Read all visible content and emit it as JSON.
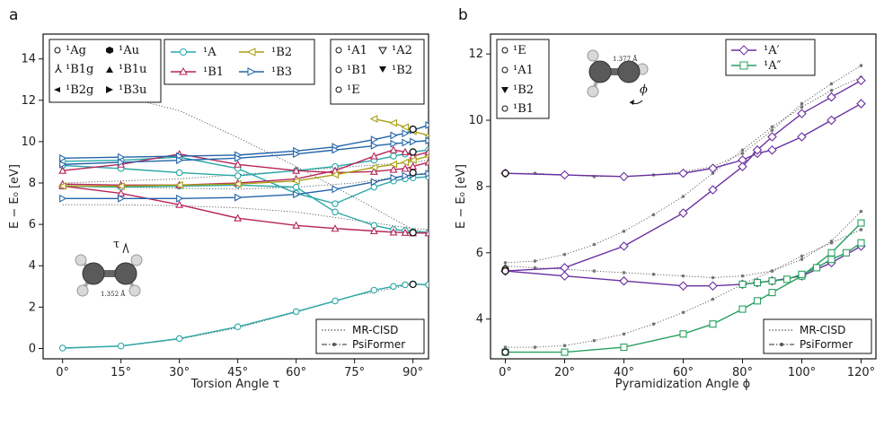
{
  "colors": {
    "A": "#2aa7a7",
    "B1": "#b5245a",
    "B2": "#a8a012",
    "B3": "#2364a8",
    "Ap": "#6a2fa0",
    "App": "#27a060",
    "ref": "#555555"
  },
  "chart_data": [
    {
      "type": "line",
      "panel_label": "a",
      "xlabel": "Torsion Angle τ",
      "ylabel": "E − E₀ [eV]",
      "xlim": [
        -5,
        94
      ],
      "ylim": [
        -0.5,
        15.2
      ],
      "xticks": [
        0,
        15,
        30,
        45,
        60,
        75,
        90
      ],
      "xtick_labels": [
        "0°",
        "15°",
        "30°",
        "45°",
        "60°",
        "75°",
        "90°"
      ],
      "yticks": [
        0,
        2,
        4,
        6,
        8,
        10,
        12,
        14
      ],
      "ytick_labels": [
        "0",
        "2",
        "4",
        "6",
        "8",
        "10",
        "12",
        "14"
      ],
      "legend_symmetry_d2h": [
        "¹Ag",
        "¹Au",
        "¹B1g",
        "¹B1u",
        "¹B2g",
        "¹B3u"
      ],
      "legend_states": [
        "¹A",
        "¹B2",
        "¹B1",
        "¹B3"
      ],
      "legend_symmetry_d2d": [
        "¹A1",
        "¹A2",
        "¹B1",
        "¹B2",
        "¹E"
      ],
      "legend_methods": [
        "MR-CISD",
        "PsiFormer"
      ],
      "inset_label": "1.352 Å",
      "inset_angle": "τ",
      "x": [
        0,
        15,
        30,
        45,
        60,
        70,
        80,
        85,
        88,
        90,
        94
      ],
      "series": [
        {
          "name": "¹A",
          "key": "A",
          "values": [
            0.02,
            0.12,
            0.48,
            1.05,
            1.78,
            2.3,
            2.82,
            3.0,
            3.08,
            3.12,
            3.08
          ]
        },
        {
          "name": "¹A",
          "key": "A",
          "values": [
            8.85,
            8.7,
            8.5,
            8.35,
            8.6,
            8.8,
            9.1,
            9.3,
            9.4,
            9.5,
            9.6
          ]
        },
        {
          "name": "¹A",
          "key": "A",
          "values": [
            7.85,
            7.8,
            7.85,
            7.9,
            7.8,
            6.6,
            5.95,
            5.75,
            5.7,
            5.65,
            5.62
          ]
        },
        {
          "name": "¹A",
          "key": "A",
          "values": [
            9.05,
            9.1,
            9.25,
            8.7,
            7.5,
            7.0,
            7.8,
            8.1,
            8.2,
            8.25,
            8.3
          ]
        },
        {
          "name": "¹B1",
          "key": "B1",
          "values": [
            8.6,
            8.9,
            9.4,
            8.9,
            8.6,
            8.5,
            8.55,
            8.65,
            8.7,
            8.8,
            9.0
          ]
        },
        {
          "name": "¹B1",
          "key": "B1",
          "values": [
            7.85,
            7.5,
            6.95,
            6.3,
            5.95,
            5.8,
            5.68,
            5.62,
            5.6,
            5.58,
            5.58
          ]
        },
        {
          "name": "¹B1",
          "key": "B1",
          "values": [
            7.95,
            7.9,
            7.9,
            8.0,
            8.2,
            8.6,
            9.3,
            9.6,
            9.5,
            9.3,
            9.5
          ]
        },
        {
          "name": "¹B2",
          "key": "B2",
          "values": [
            null,
            null,
            null,
            null,
            null,
            null,
            11.1,
            10.9,
            10.7,
            10.5,
            10.3
          ]
        },
        {
          "name": "¹B2",
          "key": "B2",
          "values": [
            7.85,
            7.85,
            7.9,
            7.95,
            8.1,
            8.4,
            8.75,
            8.9,
            9.0,
            9.1,
            9.3
          ]
        },
        {
          "name": "¹B3",
          "key": "B3",
          "values": [
            9.2,
            9.25,
            9.3,
            9.35,
            9.55,
            9.75,
            10.1,
            10.3,
            10.4,
            10.55,
            10.8
          ]
        },
        {
          "name": "¹B3",
          "key": "B3",
          "values": [
            7.25,
            7.25,
            7.25,
            7.3,
            7.45,
            7.7,
            8.05,
            8.25,
            8.35,
            8.4,
            8.45
          ]
        },
        {
          "name": "¹B3",
          "key": "B3",
          "values": [
            8.9,
            9.0,
            9.1,
            9.2,
            9.4,
            9.6,
            9.8,
            9.9,
            9.95,
            10.0,
            10.05
          ]
        }
      ],
      "reference_x": [
        0,
        15,
        30,
        45,
        60,
        75,
        90,
        94
      ],
      "reference_lines": [
        [
          0.0,
          0.1,
          0.45,
          1.0,
          1.75,
          2.55,
          3.1,
          3.05
        ],
        [
          12.6,
          12.2,
          11.5,
          10.2,
          8.8,
          7.3,
          5.75,
          5.6
        ],
        [
          6.95,
          6.95,
          6.9,
          6.8,
          6.6,
          6.2,
          5.8,
          5.75
        ],
        [
          8.0,
          8.1,
          8.2,
          8.4,
          8.6,
          8.8,
          9.0,
          9.1
        ],
        [
          7.9,
          7.8,
          7.75,
          7.7,
          7.8,
          8.0,
          8.4,
          8.5
        ]
      ],
      "end_markers_90": [
        10.6,
        9.5,
        8.5,
        5.6,
        3.1
      ]
    },
    {
      "type": "line",
      "panel_label": "b",
      "xlabel": "Pyramidization Angle ϕ",
      "ylabel": "E − E₀ [eV]",
      "xlim": [
        -5,
        125
      ],
      "ylim": [
        2.8,
        12.6
      ],
      "xticks": [
        0,
        20,
        40,
        60,
        80,
        100,
        120
      ],
      "xtick_labels": [
        "0°",
        "20°",
        "40°",
        "60°",
        "80°",
        "100°",
        "120°"
      ],
      "yticks": [
        4,
        6,
        8,
        10,
        12
      ],
      "ytick_labels": [
        "4",
        "6",
        "8",
        "10",
        "12"
      ],
      "legend_symmetry": [
        "¹E",
        "¹A1",
        "¹B2",
        "¹B1"
      ],
      "legend_states": [
        "¹A′",
        "¹A″"
      ],
      "legend_methods": [
        "MR-CISD",
        "PsiFormer"
      ],
      "inset_label": "1.377 Å",
      "inset_angle": "ϕ",
      "series": [
        {
          "name": "¹A′",
          "key": "Ap",
          "x": [
            0,
            20,
            40,
            60,
            70,
            80,
            85,
            90,
            100,
            110,
            120
          ],
          "values": [
            8.4,
            8.35,
            8.3,
            8.4,
            8.55,
            8.8,
            9.0,
            9.1,
            9.5,
            10.0,
            10.5
          ]
        },
        {
          "name": "¹A′",
          "key": "Ap",
          "x": [
            0,
            20,
            40,
            60,
            70,
            80,
            85,
            90,
            100,
            110,
            120
          ],
          "values": [
            5.45,
            5.55,
            6.2,
            7.2,
            7.9,
            8.6,
            9.1,
            9.5,
            10.2,
            10.7,
            11.2
          ]
        },
        {
          "name": "¹A′",
          "key": "Ap",
          "x": [
            0,
            20,
            40,
            60,
            70,
            80,
            85,
            90,
            100,
            110,
            120
          ],
          "values": [
            5.45,
            5.3,
            5.15,
            5.0,
            5.0,
            5.05,
            5.1,
            5.15,
            5.3,
            5.7,
            6.2
          ]
        },
        {
          "name": "¹A″",
          "key": "App",
          "x": [
            0,
            20,
            40,
            60,
            70,
            80,
            85,
            90,
            100,
            110,
            120
          ],
          "values": [
            3.0,
            3.0,
            3.15,
            3.55,
            3.85,
            4.3,
            4.55,
            4.8,
            5.3,
            6.0,
            6.9
          ]
        },
        {
          "name": "¹A″",
          "key": "App",
          "x": [
            80,
            85,
            90,
            95,
            100,
            105,
            110,
            115,
            120
          ],
          "values": [
            5.05,
            5.1,
            5.15,
            5.2,
            5.35,
            5.55,
            5.8,
            6.0,
            6.3
          ]
        }
      ],
      "reference_lines": [
        {
          "x": [
            0,
            10,
            20,
            30,
            40,
            50,
            60,
            70,
            80,
            90,
            100,
            110,
            120
          ],
          "values": [
            8.4,
            8.4,
            8.35,
            8.3,
            8.3,
            8.35,
            8.45,
            8.6,
            9.0,
            9.7,
            10.5,
            11.1,
            11.65
          ]
        },
        {
          "x": [
            0,
            10,
            20,
            30,
            40,
            50,
            60,
            70,
            80,
            90,
            100,
            110,
            120
          ],
          "values": [
            5.7,
            5.75,
            5.95,
            6.25,
            6.65,
            7.15,
            7.7,
            8.4,
            9.1,
            9.8,
            10.4,
            10.9,
            11.3
          ]
        },
        {
          "x": [
            0,
            10,
            20,
            30,
            40,
            50,
            60,
            70,
            80,
            90,
            100,
            110,
            120
          ],
          "values": [
            5.6,
            5.55,
            5.5,
            5.45,
            5.4,
            5.35,
            5.3,
            5.25,
            5.3,
            5.45,
            5.8,
            6.35,
            7.25
          ]
        },
        {
          "x": [
            0,
            10,
            20,
            30,
            40,
            50,
            60,
            70,
            80,
            90,
            100,
            110,
            120
          ],
          "values": [
            3.15,
            3.15,
            3.2,
            3.35,
            3.55,
            3.85,
            4.2,
            4.6,
            5.05,
            5.45,
            5.9,
            6.3,
            6.7
          ]
        }
      ],
      "start_markers_0": [
        8.4,
        5.5,
        5.45,
        3.0
      ]
    }
  ]
}
